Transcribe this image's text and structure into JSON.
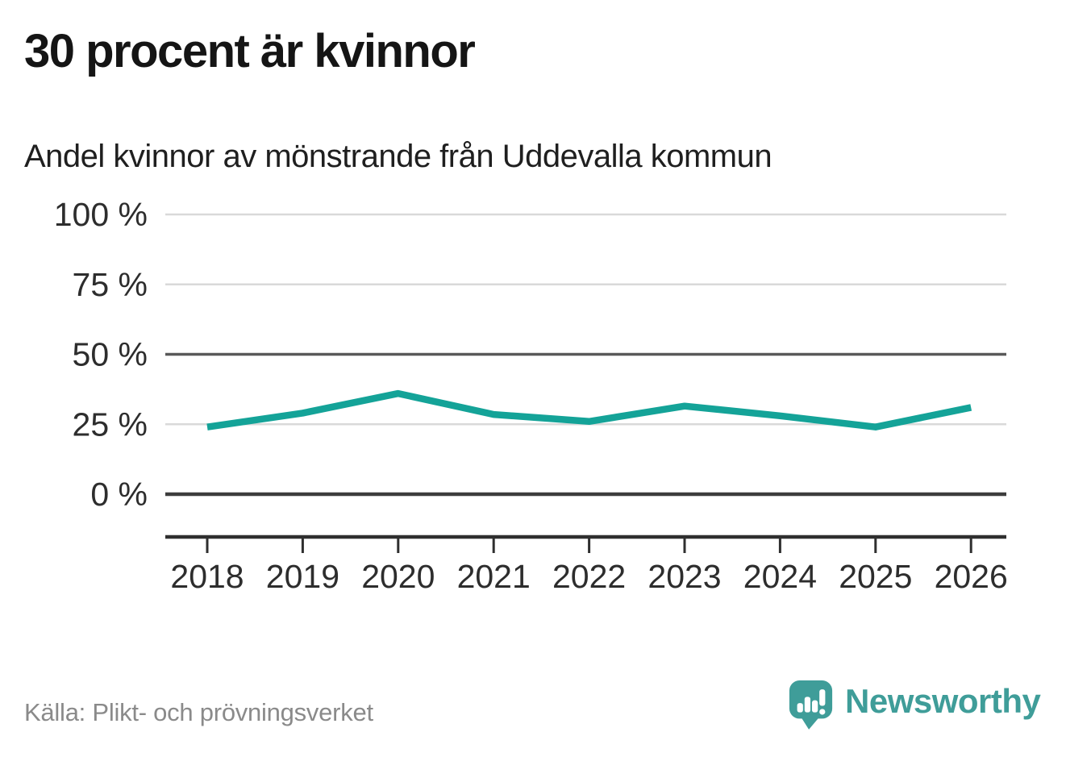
{
  "chart_data": {
    "type": "line",
    "title": "30 procent är kvinnor",
    "subtitle": "Andel kvinnor av mönstrande från Uddevalla kommun",
    "categories": [
      "2018",
      "2019",
      "2020",
      "2021",
      "2022",
      "2023",
      "2024",
      "2025",
      "2026"
    ],
    "values": [
      24,
      29,
      36,
      28.5,
      26,
      31.5,
      28,
      24,
      31
    ],
    "unit": "%",
    "ylim": [
      0,
      100
    ],
    "yticks": [
      0,
      25,
      50,
      75,
      100
    ],
    "ytick_labels": [
      "0 %",
      "25 %",
      "50 %",
      "75 %",
      "100 %"
    ],
    "xlabel": "",
    "ylabel": "",
    "grid": true,
    "legend": "none",
    "line_color": "#14a398",
    "emphasized_gridlines": [
      0,
      50
    ]
  },
  "footer": {
    "source": "Källa: Plikt- och prövningsverket",
    "brand": "Newsworthy",
    "brand_color": "#3f9d99"
  }
}
